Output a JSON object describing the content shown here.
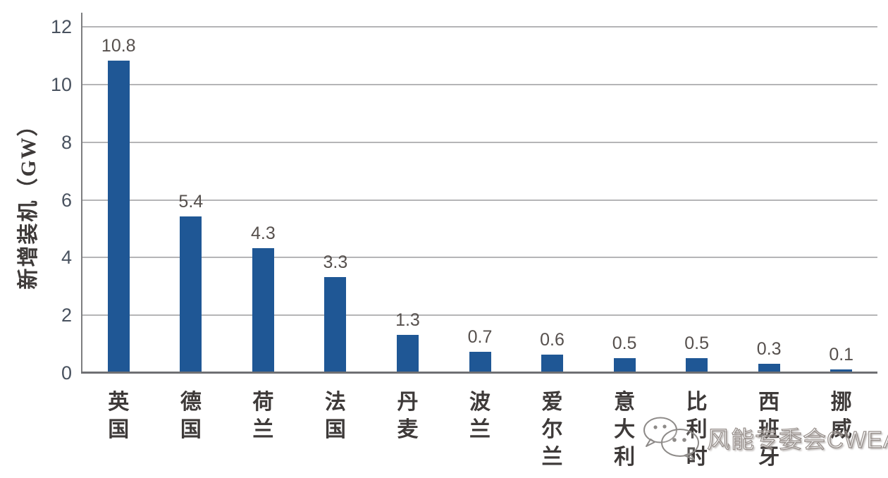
{
  "chart_data": {
    "type": "bar",
    "categories": [
      "英国",
      "德国",
      "荷兰",
      "法国",
      "丹麦",
      "波兰",
      "爱尔兰",
      "意大利",
      "比利时",
      "西班牙",
      "挪威"
    ],
    "values": [
      10.8,
      5.4,
      4.3,
      3.3,
      1.3,
      0.7,
      0.6,
      0.5,
      0.5,
      0.3,
      0.1
    ],
    "value_labels": [
      "10.8",
      "5.4",
      "4.3",
      "3.3",
      "1.3",
      "0.7",
      "0.6",
      "0.5",
      "0.5",
      "0.3",
      "0.1"
    ],
    "title": "",
    "xlabel": "",
    "ylabel": "新增装机（GW）",
    "ylim": [
      0,
      12
    ],
    "yticks": [
      0,
      2,
      4,
      6,
      8,
      10,
      12
    ],
    "grid": true,
    "legend": null,
    "bar_color": "#1f5795"
  },
  "colors": {
    "bar": "#1f5795",
    "gridline": "#b5b5b7",
    "axis": "#6f7073",
    "tick_text": "#49525f",
    "value_text": "#56504d",
    "category_text": "#3e3a39"
  },
  "watermark": {
    "text": "风能专委会CWEA",
    "icon": "wechat-icon"
  }
}
